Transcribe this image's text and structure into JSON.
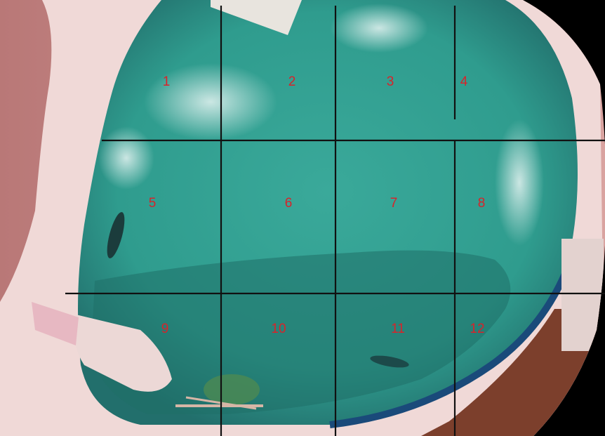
{
  "colors": {
    "water": "#2f9c8e",
    "water_shadow": "#1f6f68",
    "deck": "#f0d9d7",
    "rock": "#c98a88",
    "grid_line": "#111111",
    "label": "#d8232a",
    "frame": "#000000"
  },
  "zones": [
    {
      "label": "1"
    },
    {
      "label": "2"
    },
    {
      "label": "3"
    },
    {
      "label": "4"
    },
    {
      "label": "5"
    },
    {
      "label": "6"
    },
    {
      "label": "7"
    },
    {
      "label": "8"
    },
    {
      "label": "9"
    },
    {
      "label": "10"
    },
    {
      "label": "11"
    },
    {
      "label": "12"
    }
  ]
}
